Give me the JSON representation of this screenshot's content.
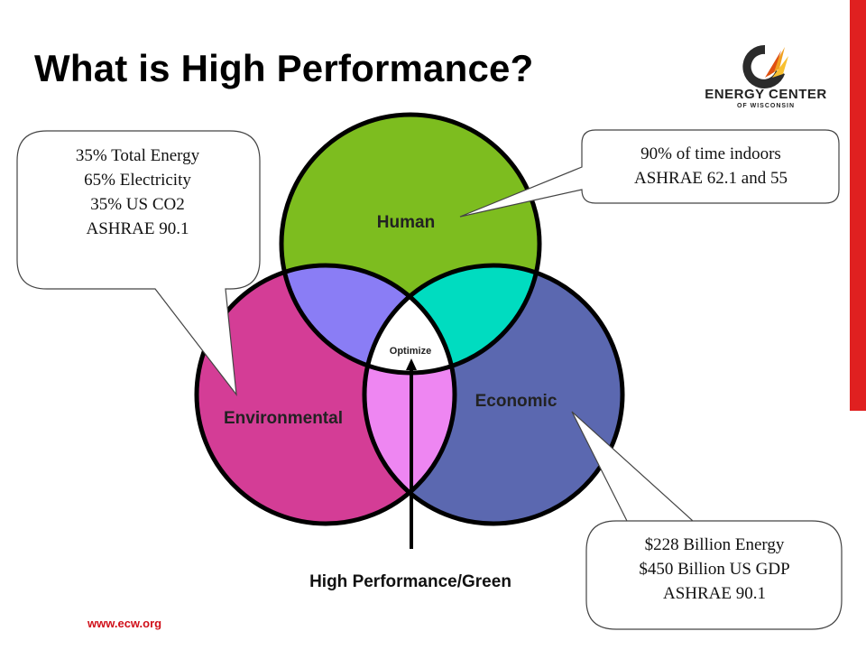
{
  "title": "What is High Performance?",
  "logo": {
    "icon": "flame-swirl-icon",
    "line1": "ENERGY CENTER",
    "line2": "OF WISCONSIN"
  },
  "circles": {
    "human": {
      "label": "Human",
      "color": "#7dbd1f"
    },
    "environmental": {
      "label": "Environmental",
      "color": "#d43d96"
    },
    "economic": {
      "label": "Economic",
      "color": "#5b68b0"
    },
    "human_environmental_overlap_color": "#8a7df5",
    "human_economic_overlap_color": "#00dcc0",
    "environmental_economic_overlap_color": "#ee86f2"
  },
  "center_label": "Optimize",
  "arrow_label": "High Performance/Green",
  "callouts": {
    "environmental": [
      "35% Total Energy",
      "65% Electricity",
      "35% US CO2",
      "ASHRAE 90.1"
    ],
    "human": [
      "90% of time indoors",
      "ASHRAE 62.1 and 55"
    ],
    "economic": [
      "$228 Billion Energy",
      "$450 Billion US GDP",
      "ASHRAE 90.1"
    ]
  },
  "footer": {
    "url": "www.ecw.org"
  },
  "accent_color": "#e02020"
}
